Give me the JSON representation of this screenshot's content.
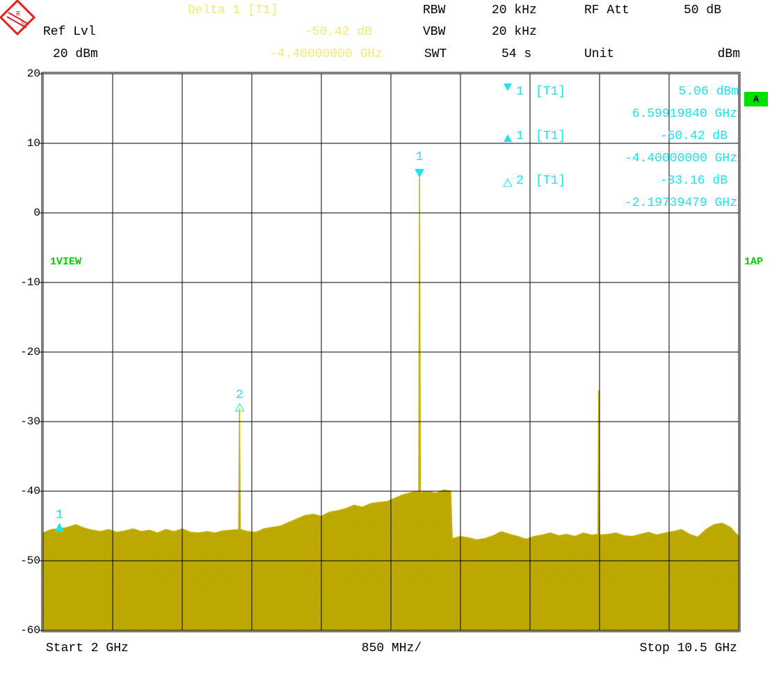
{
  "header": {
    "delta_title": "Delta 1 [T1]",
    "delta_value": "-50.42 dB",
    "delta_freq": "-4.40000000 GHz",
    "rbw_label": "RBW",
    "rbw_value": "20 kHz",
    "rfatt_label": "RF Att",
    "rfatt_value": "50 dB",
    "reflvl_label": "Ref Lvl",
    "reflvl_value": "20 dBm",
    "vbw_label": "VBW",
    "vbw_value": "20 kHz",
    "swt_label": "SWT",
    "swt_value": "54 s",
    "unit_label": "Unit",
    "unit_value": "dBm"
  },
  "side": {
    "trace_badge": "A",
    "view": "1VIEW",
    "detector": "1AP"
  },
  "marker_table": [
    [
      "1",
      "[T1]",
      "5.06 dBm"
    ],
    [
      "6.59919840 GHz"
    ],
    [
      "1",
      "[T1]",
      "-50.42 dB"
    ],
    [
      "-4.40000000 GHz"
    ],
    [
      "2",
      "[T1]",
      "-33.16 dB"
    ],
    [
      "-2.19739479 GHz"
    ]
  ],
  "chart_data": {
    "type": "area",
    "color": "#c8b400",
    "x_left_label": "Start 2 GHz",
    "x_center_label": "850 MHz/",
    "x_right_label": "Stop 10.5 GHz",
    "xlim": [
      2,
      10.5
    ],
    "xticks": [
      2,
      2.85,
      3.7,
      4.55,
      5.4,
      6.25,
      7.1,
      7.95,
      8.8,
      9.65,
      10.5
    ],
    "ylim": [
      -60,
      20
    ],
    "yticks": [
      20,
      10,
      0,
      -10,
      -20,
      -30,
      -40,
      -50,
      -60
    ],
    "grid": true,
    "x": [
      2.0,
      2.1,
      2.2,
      2.3,
      2.4,
      2.5,
      2.6,
      2.7,
      2.8,
      2.9,
      3.0,
      3.1,
      3.2,
      3.3,
      3.4,
      3.5,
      3.6,
      3.7,
      3.8,
      3.9,
      4.0,
      4.1,
      4.2,
      4.3,
      4.39,
      4.4,
      4.41,
      4.5,
      4.6,
      4.7,
      4.8,
      4.9,
      5.0,
      5.1,
      5.2,
      5.3,
      5.4,
      5.5,
      5.6,
      5.7,
      5.8,
      5.9,
      6.0,
      6.1,
      6.2,
      6.3,
      6.4,
      6.5,
      6.59,
      6.6,
      6.61,
      6.7,
      6.8,
      6.9,
      6.98,
      7.0,
      7.1,
      7.2,
      7.3,
      7.4,
      7.5,
      7.6,
      7.7,
      7.8,
      7.9,
      8.0,
      8.1,
      8.2,
      8.3,
      8.4,
      8.5,
      8.6,
      8.7,
      8.78,
      8.79,
      8.8,
      8.9,
      9.0,
      9.1,
      9.2,
      9.3,
      9.4,
      9.5,
      9.6,
      9.7,
      9.8,
      9.9,
      10.0,
      10.1,
      10.2,
      10.3,
      10.4,
      10.5
    ],
    "values": [
      -46,
      -45.5,
      -45.4,
      -45.2,
      -44.8,
      -45.3,
      -45.6,
      -45.8,
      -45.5,
      -45.9,
      -45.7,
      -45.4,
      -45.8,
      -45.6,
      -46,
      -45.5,
      -45.8,
      -45.4,
      -45.9,
      -46,
      -45.8,
      -46,
      -45.7,
      -45.6,
      -45.5,
      -28.1,
      -45.5,
      -45.8,
      -45.9,
      -45.4,
      -45.2,
      -45.0,
      -44.5,
      -44.0,
      -43.5,
      -43.3,
      -43.6,
      -43.0,
      -42.8,
      -42.5,
      -42.0,
      -42.3,
      -41.8,
      -41.6,
      -41.5,
      -41.0,
      -40.5,
      -40.2,
      -40.0,
      5.06,
      -40.2,
      -40.0,
      -40.3,
      -39.8,
      -40.0,
      -46.8,
      -46.5,
      -46.7,
      -47.0,
      -46.8,
      -46.4,
      -45.8,
      -46.2,
      -46.5,
      -46.9,
      -46.5,
      -46.3,
      -46.0,
      -46.4,
      -46.2,
      -46.5,
      -46.0,
      -46.3,
      -46.2,
      -25.5,
      -46.3,
      -46.2,
      -46.0,
      -46.4,
      -46.5,
      -46.2,
      -45.9,
      -46.3,
      -46.0,
      -45.8,
      -45.5,
      -46.2,
      -46.6,
      -45.5,
      -44.8,
      -44.6,
      -45.2,
      -46.5
    ],
    "markers": [
      {
        "label": "1",
        "x": 6.5991984,
        "value": 5.06
      },
      {
        "label": "1",
        "x": 2.2,
        "value": -45.36
      },
      {
        "label": "2",
        "x": 4.40180361,
        "value": -28.1
      }
    ]
  }
}
